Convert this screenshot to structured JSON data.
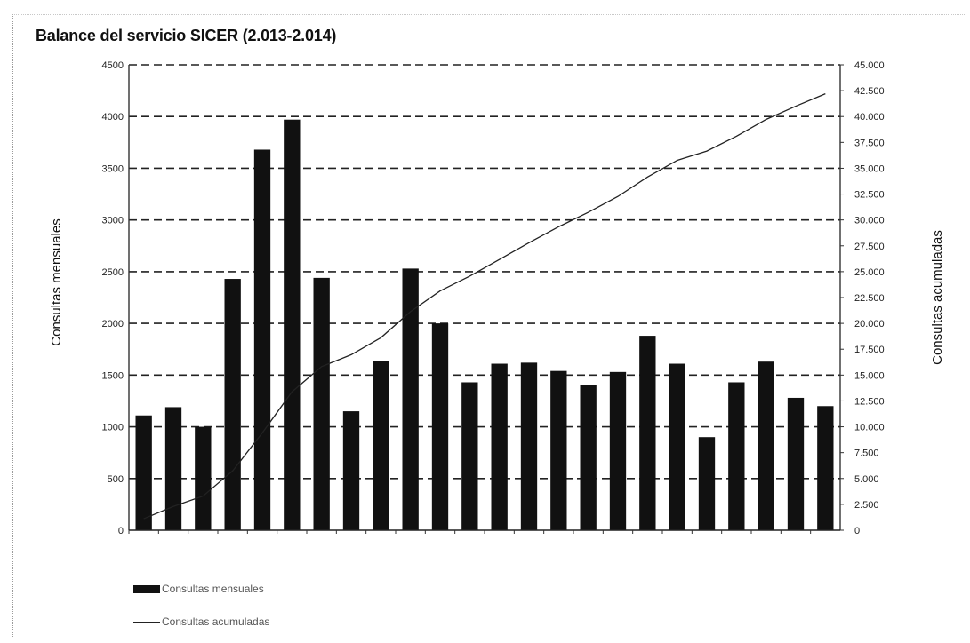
{
  "chart_data": {
    "type": "bar",
    "title": "Balance del servicio SICER (2.013-2.014)",
    "ylabel": "Consultas mensuales",
    "y2label": "Consultas acumuladas",
    "ylim": [
      0,
      4500
    ],
    "y2lim": [
      0,
      45000
    ],
    "yticks": [
      "0",
      "500",
      "1000",
      "1500",
      "2000",
      "2500",
      "3000",
      "3500",
      "4000",
      "4500"
    ],
    "y2ticks": [
      "0",
      "2.500",
      "5.000",
      "7.500",
      "10.000",
      "12.500",
      "15.000",
      "17.500",
      "20.000",
      "22.500",
      "25.000",
      "27.500",
      "30.000",
      "32.500",
      "35.000",
      "37.500",
      "40.000",
      "42.500",
      "45.000"
    ],
    "categories": [
      "",
      "",
      "",
      "",
      "",
      "",
      "",
      "",
      "",
      "",
      "",
      "",
      "",
      "",
      "",
      "",
      "",
      "",
      "",
      "",
      "",
      "",
      "",
      ""
    ],
    "grid": true,
    "legend_position": "bottom-left",
    "series": [
      {
        "name": "Consultas mensuales",
        "type": "bar",
        "axis": "left",
        "values": [
          1110,
          1190,
          1000,
          2430,
          3680,
          3970,
          2440,
          1150,
          1640,
          2530,
          2000,
          1430,
          1610,
          1620,
          1540,
          1400,
          1530,
          1880,
          1610,
          900,
          1430,
          1630,
          1280,
          1200
        ]
      },
      {
        "name": "Consultas acumuladas",
        "type": "line",
        "axis": "right",
        "values": [
          1110,
          2300,
          3300,
          5730,
          9410,
          13380,
          15820,
          16970,
          18610,
          21140,
          23140,
          24570,
          26180,
          27800,
          29340,
          30740,
          32270,
          34150,
          35760,
          36660,
          38090,
          39720,
          41000,
          42200
        ]
      }
    ]
  }
}
